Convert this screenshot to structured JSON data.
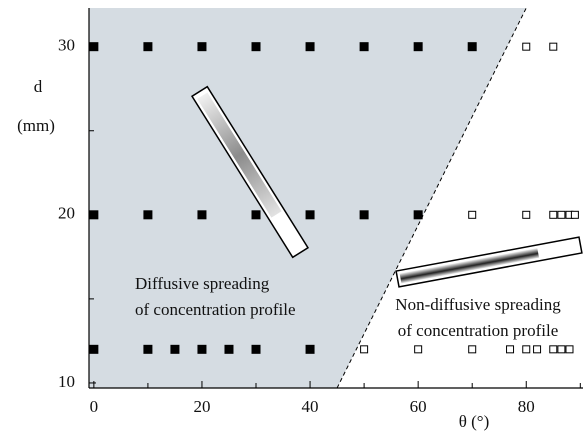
{
  "chart_data": {
    "type": "scatter",
    "xlabel": "θ (°)",
    "ylabel": [
      "d",
      "(mm)"
    ],
    "xlim": [
      -0.9,
      90.5
    ],
    "ylim": [
      9.7,
      32.3
    ],
    "xticks": [
      0,
      20,
      40,
      60,
      80
    ],
    "yticks": [
      10,
      20,
      30
    ],
    "xminor_ticks": [
      10,
      30,
      50,
      70,
      90
    ],
    "yminor_ticks": [
      15,
      25
    ],
    "region_color": "#d5dce2",
    "boundary": {
      "x": [
        45,
        80
      ],
      "y": [
        9.7,
        32.3
      ]
    },
    "series": [
      {
        "marker": "filled",
        "color": "#000000",
        "x": [
          0,
          10,
          20,
          30,
          40,
          50,
          60,
          70,
          0,
          10,
          20,
          30,
          40,
          50,
          60,
          0,
          10,
          15,
          20,
          25,
          30,
          40
        ],
        "values": [
          30,
          30,
          30,
          30,
          30,
          30,
          30,
          30,
          20,
          20,
          20,
          20,
          20,
          20,
          20,
          12,
          12,
          12,
          12,
          12,
          12,
          12
        ]
      },
      {
        "marker": "open",
        "color": "#000000",
        "x": [
          80,
          85,
          70,
          80,
          85,
          86.5,
          88,
          89,
          50,
          60,
          70,
          77,
          80,
          82,
          85,
          86.5,
          88
        ],
        "values": [
          30,
          30,
          20,
          20,
          20,
          20,
          20,
          20,
          12,
          12,
          12,
          12,
          12,
          12,
          12,
          12,
          12
        ]
      }
    ],
    "annotations": [
      [
        "Diffusive spreading",
        "of concentration profile"
      ],
      [
        "Non-diffusive spreading",
        "of concentration profile"
      ]
    ]
  }
}
